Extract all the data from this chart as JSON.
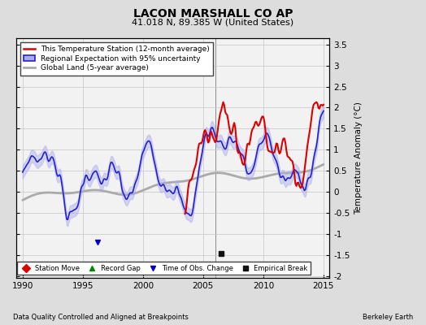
{
  "title": "LACON MARSHALL CO AP",
  "subtitle": "41.018 N, 89.385 W (United States)",
  "ylabel": "Temperature Anomaly (°C)",
  "xlabel_left": "Data Quality Controlled and Aligned at Breakpoints",
  "xlabel_right": "Berkeley Earth",
  "xlim": [
    1989.5,
    2015.5
  ],
  "ylim": [
    -2.05,
    3.65
  ],
  "yticks_left": [
    -2,
    -1.5,
    -1,
    -0.5,
    0,
    0.5,
    1,
    1.5,
    2,
    2.5,
    3,
    3.5
  ],
  "yticks_right": [
    -2,
    -1.5,
    -1,
    -0.5,
    0,
    0.5,
    1,
    1.5,
    2,
    2.5,
    3,
    3.5
  ],
  "xticks": [
    1990,
    1995,
    2000,
    2005,
    2010,
    2015
  ],
  "bg_color": "#dddddd",
  "plot_bg_color": "#f2f2f2",
  "legend_items": [
    {
      "label": "This Temperature Station (12-month average)",
      "color": "#dd0000",
      "lw": 1.5
    },
    {
      "label": "Regional Expectation with 95% uncertainty",
      "color": "#2222cc",
      "lw": 1.2
    },
    {
      "label": "Global Land (5-year average)",
      "color": "#aaaaaa",
      "lw": 2.0
    }
  ],
  "marker_items": [
    {
      "label": "Station Move",
      "color": "#dd0000",
      "marker": "D"
    },
    {
      "label": "Record Gap",
      "color": "#008800",
      "marker": "^"
    },
    {
      "label": "Time of Obs. Change",
      "color": "#0000cc",
      "marker": "v"
    },
    {
      "label": "Empirical Break",
      "color": "#111111",
      "marker": "s"
    }
  ],
  "empirical_break_x": 2006.5,
  "empirical_break_y": -1.47,
  "tobs_change_x": 1996.2,
  "tobs_change_y": -1.2,
  "grid_color": "#cccccc",
  "uncertainty_color": "#aaaaee",
  "uncertainty_alpha": 0.45,
  "vline_x": 2006.0,
  "vline_color": "#888888"
}
